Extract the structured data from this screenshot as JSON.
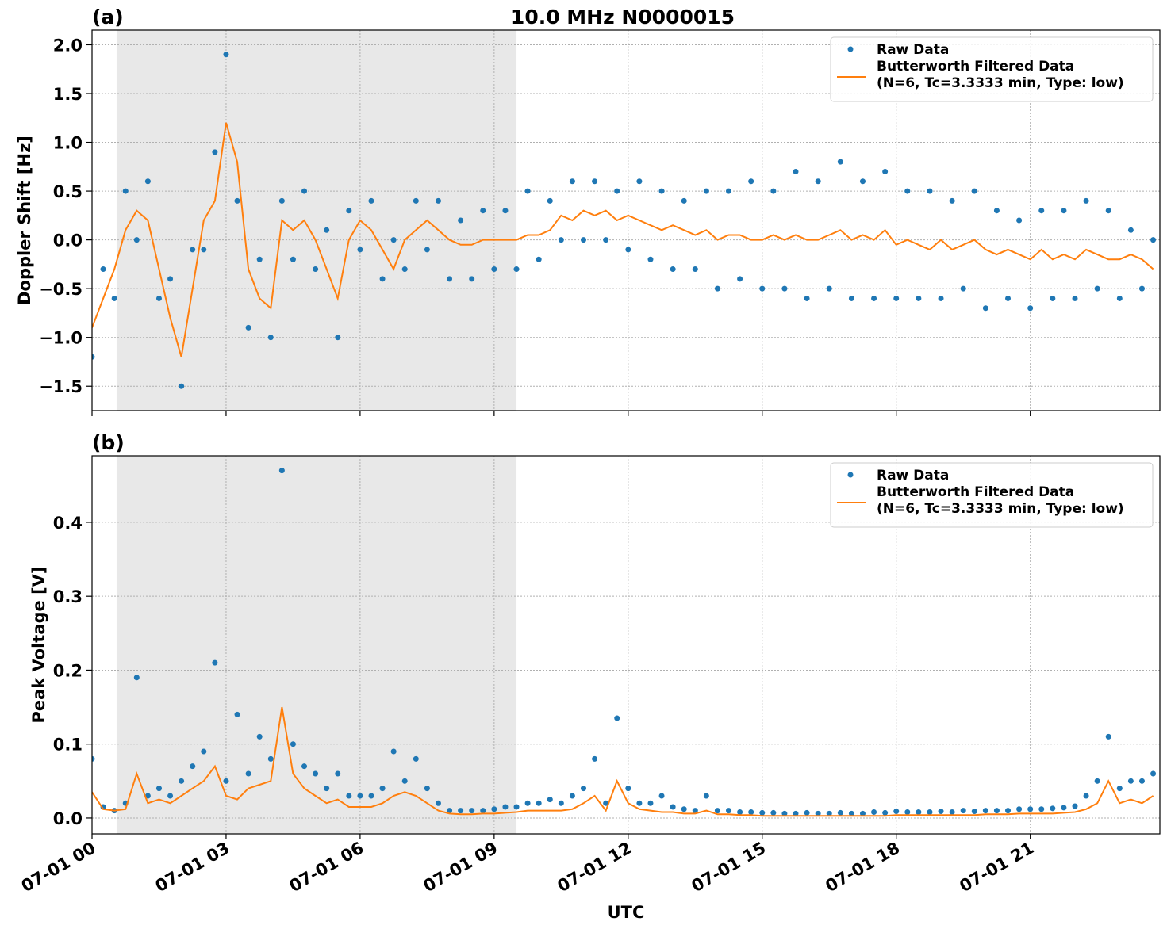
{
  "chart_data": [
    {
      "type": "line",
      "title": "10.0 MHz N0000015",
      "panel_label": "(a)",
      "ylabel": "Doppler Shift [Hz]",
      "xlim": [
        0,
        23.9
      ],
      "xticks": [
        0,
        3,
        6,
        9,
        12,
        15,
        18,
        21
      ],
      "ylim": [
        -1.75,
        2.15
      ],
      "yticks": [
        {
          "value": -1.5,
          "label": "−1.5"
        },
        {
          "value": -1.0,
          "label": "−1.0"
        },
        {
          "value": -0.5,
          "label": "−0.5"
        },
        {
          "value": 0,
          "label": "0.0"
        },
        0.5,
        {
          "value": 1.0,
          "label": "1.0"
        },
        1.5,
        {
          "value": 2.0,
          "label": "2.0"
        }
      ],
      "grid": true,
      "legend": "upper right",
      "shade_x": [
        0.55,
        9.5
      ],
      "shade_color": "#e8e8e8",
      "x": [
        0,
        0.25,
        0.5,
        0.75,
        1,
        1.25,
        1.5,
        1.75,
        2,
        2.25,
        2.5,
        2.75,
        3,
        3.25,
        3.5,
        3.75,
        4,
        4.25,
        4.5,
        4.75,
        5,
        5.25,
        5.5,
        5.75,
        6,
        6.25,
        6.5,
        6.75,
        7,
        7.25,
        7.5,
        7.75,
        8,
        8.25,
        8.5,
        8.75,
        9,
        9.25,
        9.5,
        9.75,
        10,
        10.25,
        10.5,
        10.75,
        11,
        11.25,
        11.5,
        11.75,
        12,
        12.25,
        12.5,
        12.75,
        13,
        13.25,
        13.5,
        13.75,
        14,
        14.25,
        14.5,
        14.75,
        15,
        15.25,
        15.5,
        15.75,
        16,
        16.25,
        16.5,
        16.75,
        17,
        17.25,
        17.5,
        17.75,
        18,
        18.25,
        18.5,
        18.75,
        19,
        19.25,
        19.5,
        19.75,
        20,
        20.25,
        20.5,
        20.75,
        21,
        21.25,
        21.5,
        21.75,
        22,
        22.25,
        22.5,
        22.75,
        23,
        23.25,
        23.5,
        23.75
      ],
      "series": [
        {
          "name": "Raw Data",
          "type": "scatter",
          "color": "#1f77b4",
          "values": [
            -1.2,
            -0.3,
            -0.6,
            0.5,
            0.0,
            0.6,
            -0.6,
            -0.4,
            -1.5,
            -0.1,
            -0.1,
            0.9,
            1.9,
            0.4,
            -0.9,
            -0.2,
            -1.0,
            0.4,
            -0.2,
            0.5,
            -0.3,
            0.1,
            -1.0,
            0.3,
            -0.1,
            0.4,
            -0.4,
            0.0,
            -0.3,
            0.4,
            -0.1,
            0.4,
            -0.4,
            0.2,
            -0.4,
            0.3,
            -0.3,
            0.3,
            -0.3,
            0.5,
            -0.2,
            0.4,
            0.0,
            0.6,
            0.0,
            0.6,
            0.0,
            0.5,
            -0.1,
            0.6,
            -0.2,
            0.5,
            -0.3,
            0.4,
            -0.3,
            0.5,
            -0.5,
            0.5,
            -0.4,
            0.6,
            -0.5,
            0.5,
            -0.5,
            0.7,
            -0.6,
            0.6,
            -0.5,
            0.8,
            -0.6,
            0.6,
            -0.6,
            0.7,
            -0.6,
            0.5,
            -0.6,
            0.5,
            -0.6,
            0.4,
            -0.5,
            0.5,
            -0.7,
            0.3,
            -0.6,
            0.2,
            -0.7,
            0.3,
            -0.6,
            0.3,
            -0.6,
            0.4,
            -0.5,
            0.3,
            -0.6,
            0.1,
            -0.5,
            0.0
          ]
        },
        {
          "name": "Butterworth Filtered Data\n(N=6, Tc=3.3333 min, Type: low)",
          "type": "line",
          "color": "#ff7f0e",
          "values": [
            -0.9,
            -0.6,
            -0.3,
            0.1,
            0.3,
            0.2,
            -0.3,
            -0.8,
            -1.2,
            -0.5,
            0.2,
            0.4,
            1.2,
            0.8,
            -0.3,
            -0.6,
            -0.7,
            0.2,
            0.1,
            0.2,
            0.0,
            -0.3,
            -0.6,
            0.0,
            0.2,
            0.1,
            -0.1,
            -0.3,
            0.0,
            0.1,
            0.2,
            0.1,
            0.0,
            -0.05,
            -0.05,
            0.0,
            0.0,
            0.0,
            0.0,
            0.05,
            0.05,
            0.1,
            0.25,
            0.2,
            0.3,
            0.25,
            0.3,
            0.2,
            0.25,
            0.2,
            0.15,
            0.1,
            0.15,
            0.1,
            0.05,
            0.1,
            0.0,
            0.05,
            0.05,
            0.0,
            0.0,
            0.05,
            0.0,
            0.05,
            0.0,
            0.0,
            0.05,
            0.1,
            0.0,
            0.05,
            0.0,
            0.1,
            -0.05,
            0.0,
            -0.05,
            -0.1,
            0.0,
            -0.1,
            -0.05,
            0.0,
            -0.1,
            -0.15,
            -0.1,
            -0.15,
            -0.2,
            -0.1,
            -0.2,
            -0.15,
            -0.2,
            -0.1,
            -0.15,
            -0.2,
            -0.2,
            -0.15,
            -0.2,
            -0.3
          ]
        }
      ]
    },
    {
      "type": "line",
      "panel_label": "(b)",
      "ylabel": "Peak Voltage [V]",
      "xlabel": "UTC",
      "xlim": [
        0,
        23.9
      ],
      "xticks": [
        {
          "value": 0,
          "label": "07-01 00"
        },
        {
          "value": 3,
          "label": "07-01 03"
        },
        {
          "value": 6,
          "label": "07-01 06"
        },
        {
          "value": 9,
          "label": "07-01 09"
        },
        {
          "value": 12,
          "label": "07-01 12"
        },
        {
          "value": 15,
          "label": "07-01 15"
        },
        {
          "value": 18,
          "label": "07-01 18"
        },
        {
          "value": 21,
          "label": "07-01 21"
        }
      ],
      "ylim": [
        -0.0215,
        0.49
      ],
      "yticks": [
        {
          "value": 0,
          "label": "0.0"
        },
        0.1,
        0.2,
        0.3,
        0.4
      ],
      "grid": true,
      "legend": "upper right",
      "shade_x": [
        0.55,
        9.5
      ],
      "shade_color": "#e8e8e8",
      "x": [
        0,
        0.25,
        0.5,
        0.75,
        1,
        1.25,
        1.5,
        1.75,
        2,
        2.25,
        2.5,
        2.75,
        3,
        3.25,
        3.5,
        3.75,
        4,
        4.25,
        4.5,
        4.75,
        5,
        5.25,
        5.5,
        5.75,
        6,
        6.25,
        6.5,
        6.75,
        7,
        7.25,
        7.5,
        7.75,
        8,
        8.25,
        8.5,
        8.75,
        9,
        9.25,
        9.5,
        9.75,
        10,
        10.25,
        10.5,
        10.75,
        11,
        11.25,
        11.5,
        11.75,
        12,
        12.25,
        12.5,
        12.75,
        13,
        13.25,
        13.5,
        13.75,
        14,
        14.25,
        14.5,
        14.75,
        15,
        15.25,
        15.5,
        15.75,
        16,
        16.25,
        16.5,
        16.75,
        17,
        17.25,
        17.5,
        17.75,
        18,
        18.25,
        18.5,
        18.75,
        19,
        19.25,
        19.5,
        19.75,
        20,
        20.25,
        20.5,
        20.75,
        21,
        21.25,
        21.5,
        21.75,
        22,
        22.25,
        22.5,
        22.75,
        23,
        23.25,
        23.5,
        23.75
      ],
      "series": [
        {
          "name": "Raw Data",
          "type": "scatter",
          "color": "#1f77b4",
          "values": [
            0.08,
            0.015,
            0.01,
            0.02,
            0.19,
            0.03,
            0.04,
            0.03,
            0.05,
            0.07,
            0.09,
            0.21,
            0.05,
            0.14,
            0.06,
            0.11,
            0.08,
            0.47,
            0.1,
            0.07,
            0.06,
            0.04,
            0.06,
            0.03,
            0.03,
            0.03,
            0.04,
            0.09,
            0.05,
            0.08,
            0.04,
            0.02,
            0.01,
            0.01,
            0.01,
            0.01,
            0.012,
            0.015,
            0.015,
            0.02,
            0.02,
            0.025,
            0.02,
            0.03,
            0.04,
            0.08,
            0.02,
            0.135,
            0.04,
            0.02,
            0.02,
            0.03,
            0.015,
            0.012,
            0.01,
            0.03,
            0.01,
            0.01,
            0.008,
            0.008,
            0.007,
            0.007,
            0.006,
            0.006,
            0.007,
            0.006,
            0.006,
            0.007,
            0.006,
            0.006,
            0.008,
            0.007,
            0.009,
            0.008,
            0.008,
            0.008,
            0.009,
            0.008,
            0.01,
            0.009,
            0.01,
            0.01,
            0.01,
            0.012,
            0.012,
            0.012,
            0.013,
            0.014,
            0.016,
            0.03,
            0.05,
            0.11,
            0.04,
            0.05,
            0.05,
            0.06
          ]
        },
        {
          "name": "Butterworth Filtered Data\n(N=6, Tc=3.3333 min, Type: low)",
          "type": "line",
          "color": "#ff7f0e",
          "values": [
            0.035,
            0.012,
            0.01,
            0.012,
            0.06,
            0.02,
            0.025,
            0.02,
            0.03,
            0.04,
            0.05,
            0.07,
            0.03,
            0.025,
            0.04,
            0.045,
            0.05,
            0.15,
            0.06,
            0.04,
            0.03,
            0.02,
            0.025,
            0.015,
            0.015,
            0.015,
            0.02,
            0.03,
            0.035,
            0.03,
            0.02,
            0.01,
            0.006,
            0.005,
            0.005,
            0.006,
            0.006,
            0.007,
            0.008,
            0.01,
            0.01,
            0.01,
            0.01,
            0.012,
            0.02,
            0.03,
            0.01,
            0.05,
            0.02,
            0.012,
            0.01,
            0.008,
            0.008,
            0.006,
            0.006,
            0.01,
            0.005,
            0.005,
            0.004,
            0.004,
            0.003,
            0.003,
            0.003,
            0.003,
            0.003,
            0.003,
            0.003,
            0.003,
            0.003,
            0.003,
            0.003,
            0.003,
            0.004,
            0.004,
            0.004,
            0.004,
            0.004,
            0.004,
            0.004,
            0.004,
            0.005,
            0.005,
            0.005,
            0.006,
            0.006,
            0.006,
            0.006,
            0.007,
            0.008,
            0.012,
            0.02,
            0.05,
            0.02,
            0.025,
            0.02,
            0.03
          ]
        }
      ]
    }
  ]
}
